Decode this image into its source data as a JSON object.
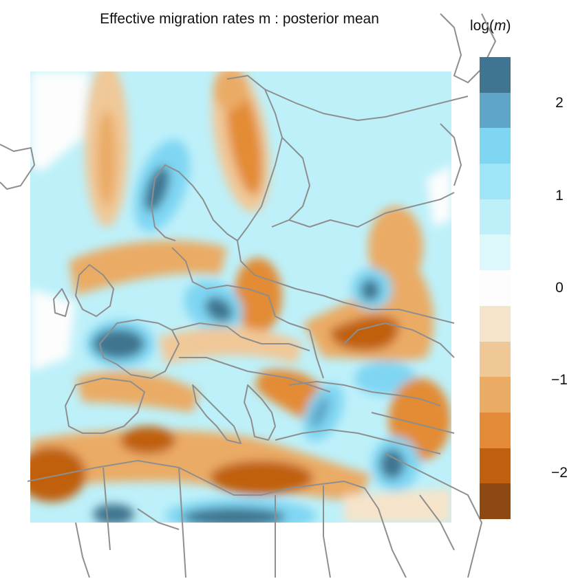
{
  "title": "Effective migration rates m : posterior mean",
  "legend": {
    "title_prefix": "log(",
    "title_var": "m",
    "title_suffix": ")",
    "ticks": [
      {
        "label": "2",
        "value": 2
      },
      {
        "label": "1",
        "value": 1
      },
      {
        "label": "0",
        "value": 0
      },
      {
        "label": "−1",
        "value": -1
      },
      {
        "label": "−2",
        "value": -2
      }
    ],
    "range": [
      -2.5,
      2.5
    ],
    "colors": [
      "#3f7590",
      "#5ea5c9",
      "#7fd6f3",
      "#9ee5f7",
      "#bdf0f9",
      "#dcf8fb",
      "#fdfdfd",
      "#f6e4ca",
      "#f0c898",
      "#eaab65",
      "#e38b36",
      "#c0600f",
      "#8c4a12"
    ]
  },
  "map": {
    "region": "Europe",
    "colors": {
      "border": "#8e8e8e",
      "very_high": "#3f7590",
      "high": "#7fd6f3",
      "mid_high": "#bdf0f9",
      "neutral": "#fdfdfd",
      "low": "#f0c898",
      "mid_low": "#e38b36",
      "very_low": "#a85210"
    }
  }
}
